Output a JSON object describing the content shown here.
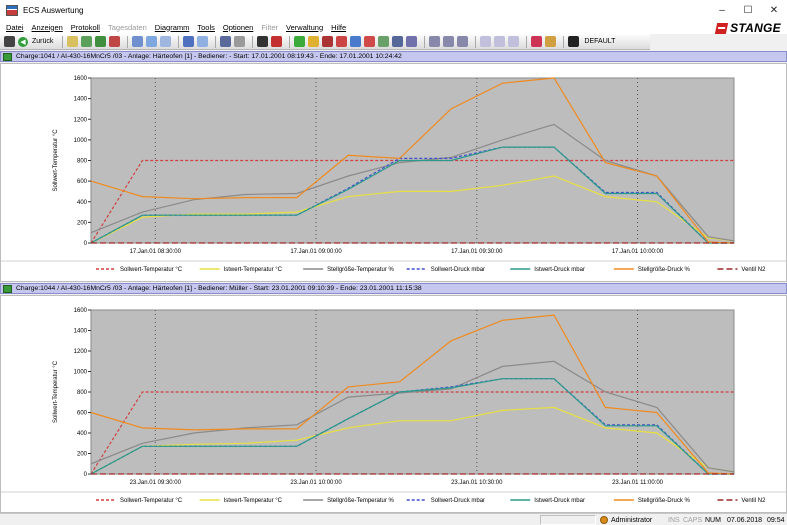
{
  "window": {
    "title": "ECS Auswertung",
    "controls": [
      "–",
      "☐",
      "✕"
    ]
  },
  "menu": [
    {
      "label": "Datei",
      "enabled": true
    },
    {
      "label": "Anzeigen",
      "enabled": true
    },
    {
      "label": "Protokoll",
      "enabled": true
    },
    {
      "label": "Tagesdaten",
      "enabled": false
    },
    {
      "label": "Diagramm",
      "enabled": true
    },
    {
      "label": "Tools",
      "enabled": true
    },
    {
      "label": "Optionen",
      "enabled": true
    },
    {
      "label": "Filter",
      "enabled": false
    },
    {
      "label": "Verwaltung",
      "enabled": true
    },
    {
      "label": "Hilfe",
      "enabled": true
    }
  ],
  "brand": "STANGE",
  "toolbar": {
    "back_label": "Zurück",
    "profile_label": "DEFAULT"
  },
  "charts": [
    {
      "header": "Charge:1041 / AI-430-16MnCr5 /03 - Anlage:  Härteofen [1] - Bediener:  - Start:  17.01.2001 08:19:43 - Ende:  17.01.2001 10:24:42",
      "ylabel": "Sollwert-Temperatur °C",
      "x_ticks": [
        "17.Jan.01 08:30:00",
        "17.Jan.01 09:00:00",
        "17.Jan.01 09:30:00",
        "17.Jan.01 10:00:00"
      ]
    },
    {
      "header": "Charge:1044 / AI-430-16MnCr5 /03 - Anlage:  Härteofen [1] - Bediener:  Müller - Start:  23.01.2001 09:10:39 - Ende:  23.01.2001 11:15:38",
      "ylabel": "Sollwert-Temperatur °C",
      "x_ticks": [
        "23.Jan.01 09:30:00",
        "23.Jan.01 10:00:00",
        "23.Jan.01 10:30:00",
        "23.Jan.01 11:00:00"
      ]
    }
  ],
  "chart_data": [
    {
      "type": "line",
      "title": "Charge:1041 / AI-430-16MnCr5 /03",
      "ylabel": "Sollwert-Temperatur °C",
      "ylim": [
        0,
        1600
      ],
      "y_ticks": [
        0,
        200,
        400,
        600,
        800,
        1000,
        1200,
        1400,
        1600
      ],
      "x": [
        0,
        10,
        20,
        30,
        40,
        50,
        60,
        70,
        80,
        90,
        100,
        110,
        120,
        125
      ],
      "x_unit": "minutes after start",
      "series": [
        {
          "name": "Sollwert-Temperatur °C",
          "color": "#d04040",
          "dash": "3,2",
          "values": [
            0,
            800,
            800,
            800,
            800,
            800,
            800,
            800,
            800,
            800,
            800,
            800,
            800,
            800
          ]
        },
        {
          "name": "Istwert-Temperatur °C",
          "color": "#e8e040",
          "dash": "",
          "values": [
            0,
            250,
            280,
            280,
            300,
            450,
            500,
            500,
            560,
            650,
            450,
            400,
            50,
            20
          ]
        },
        {
          "name": "Stellgröße-Temperatur %",
          "color": "#8a8a8a",
          "dash": "",
          "values": [
            100,
            300,
            420,
            470,
            480,
            650,
            780,
            830,
            1000,
            1150,
            800,
            650,
            60,
            20
          ]
        },
        {
          "name": "Sollwert-Druck mbar",
          "color": "#404ed0",
          "dash": "3,2",
          "values": [
            0,
            270,
            270,
            270,
            270,
            530,
            820,
            820,
            930,
            930,
            490,
            490,
            0,
            0
          ]
        },
        {
          "name": "Istwert-Druck mbar",
          "color": "#2a9a8a",
          "dash": "",
          "values": [
            0,
            270,
            270,
            270,
            270,
            520,
            800,
            800,
            930,
            930,
            480,
            480,
            0,
            0
          ]
        },
        {
          "name": "Stellgröße-Druck %",
          "color": "#f08a1e",
          "dash": "",
          "values": [
            600,
            450,
            430,
            440,
            440,
            850,
            820,
            1300,
            1550,
            1600,
            780,
            650,
            10,
            0
          ]
        },
        {
          "name": "Ventil N2",
          "color": "#a02828",
          "dash": "6,3",
          "values": [
            0,
            0,
            0,
            0,
            0,
            0,
            0,
            0,
            0,
            0,
            0,
            0,
            0,
            0
          ]
        }
      ]
    },
    {
      "type": "line",
      "title": "Charge:1044 / AI-430-16MnCr5 /03",
      "ylabel": "Sollwert-Temperatur °C",
      "ylim": [
        0,
        1600
      ],
      "y_ticks": [
        0,
        200,
        400,
        600,
        800,
        1000,
        1200,
        1400,
        1600
      ],
      "x": [
        0,
        10,
        20,
        30,
        40,
        50,
        60,
        70,
        80,
        90,
        100,
        110,
        120,
        125
      ],
      "x_unit": "minutes after start",
      "series": [
        {
          "name": "Sollwert-Temperatur °C",
          "color": "#d04040",
          "dash": "3,2",
          "values": [
            0,
            800,
            800,
            800,
            800,
            800,
            800,
            800,
            800,
            800,
            800,
            800,
            800,
            800
          ]
        },
        {
          "name": "Istwert-Temperatur °C",
          "color": "#e8e040",
          "dash": "",
          "values": [
            0,
            270,
            290,
            300,
            330,
            450,
            520,
            520,
            620,
            650,
            450,
            400,
            60,
            20
          ]
        },
        {
          "name": "Stellgröße-Temperatur %",
          "color": "#8a8a8a",
          "dash": "",
          "values": [
            100,
            300,
            400,
            450,
            480,
            750,
            790,
            830,
            1050,
            1100,
            800,
            650,
            60,
            20
          ]
        },
        {
          "name": "Sollwert-Druck mbar",
          "color": "#404ed0",
          "dash": "3,2",
          "values": [
            0,
            270,
            270,
            270,
            270,
            540,
            800,
            850,
            930,
            930,
            480,
            480,
            0,
            0
          ]
        },
        {
          "name": "Istwert-Druck mbar",
          "color": "#2a9a8a",
          "dash": "",
          "values": [
            0,
            270,
            270,
            270,
            270,
            540,
            800,
            840,
            930,
            930,
            470,
            470,
            0,
            0
          ]
        },
        {
          "name": "Stellgröße-Druck %",
          "color": "#f08a1e",
          "dash": "",
          "values": [
            600,
            450,
            430,
            440,
            440,
            850,
            900,
            1300,
            1500,
            1550,
            650,
            600,
            10,
            0
          ]
        },
        {
          "name": "Ventil N2",
          "color": "#a02828",
          "dash": "6,3",
          "values": [
            0,
            0,
            0,
            0,
            0,
            0,
            0,
            0,
            0,
            0,
            0,
            0,
            0,
            0
          ]
        }
      ]
    }
  ],
  "legend": [
    {
      "label": "Sollwert-Temperatur °C",
      "color": "#d04040",
      "dash": "3,2"
    },
    {
      "label": "Istwert-Temperatur °C",
      "color": "#e8e040",
      "dash": ""
    },
    {
      "label": "Stellgröße-Temperatur %",
      "color": "#8a8a8a",
      "dash": ""
    },
    {
      "label": "Sollwert-Druck mbar",
      "color": "#404ed0",
      "dash": "3,2"
    },
    {
      "label": "Istwert-Druck mbar",
      "color": "#2a9a8a",
      "dash": ""
    },
    {
      "label": "Stellgröße-Druck %",
      "color": "#f08a1e",
      "dash": ""
    },
    {
      "label": "Ventil N2",
      "color": "#a02828",
      "dash": "6,3"
    }
  ],
  "status": {
    "user": "Administrator",
    "ins": "INS",
    "caps": "CAPS",
    "num": "NUM",
    "date": "07.06.2018",
    "time": "09:54"
  }
}
